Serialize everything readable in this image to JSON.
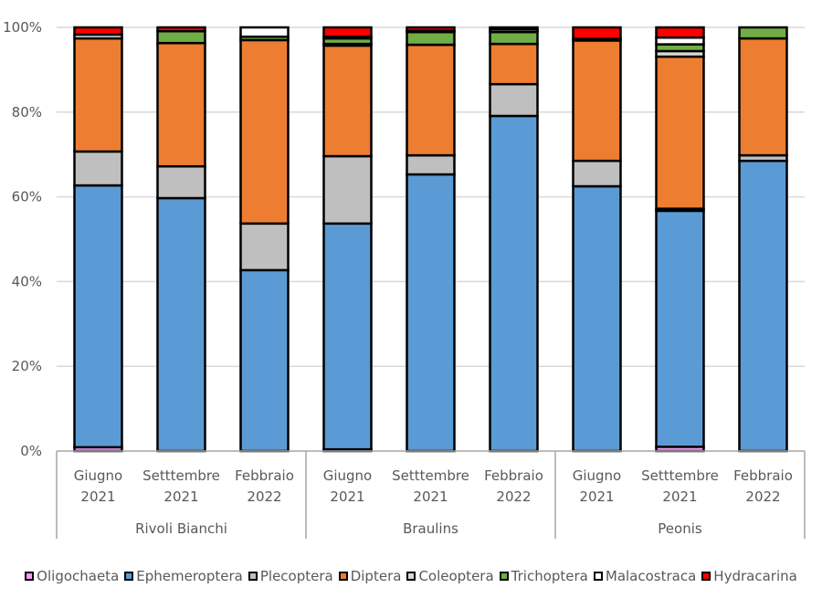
{
  "chart_data": {
    "type": "bar",
    "stacked": true,
    "normalized": true,
    "title": "",
    "xlabel": "",
    "ylabel": "",
    "ylim": [
      0,
      100
    ],
    "yticks": [
      "0%",
      "20%",
      "40%",
      "60%",
      "80%",
      "100%"
    ],
    "grid": true,
    "legend_position": "bottom",
    "groups": [
      {
        "name": "Rivoli Bianchi",
        "categories": [
          {
            "line1": "Giugno",
            "line2": "2021"
          },
          {
            "line1": "Setttembre",
            "line2": "2021"
          },
          {
            "line1": "Febbraio",
            "line2": "2022"
          }
        ]
      },
      {
        "name": "Braulins",
        "categories": [
          {
            "line1": "Giugno",
            "line2": "2021"
          },
          {
            "line1": "Setttembre",
            "line2": "2021"
          },
          {
            "line1": "Febbraio",
            "line2": "2022"
          }
        ]
      },
      {
        "name": "Peonis",
        "categories": [
          {
            "line1": "Giugno",
            "line2": "2021"
          },
          {
            "line1": "Setttembre",
            "line2": "2021"
          },
          {
            "line1": "Febbraio",
            "line2": "2022"
          }
        ]
      }
    ],
    "series": [
      {
        "name": "Oligochaeta",
        "color": "#FF99FF",
        "values": [
          0.9,
          0.0,
          0.0,
          0.4,
          0.0,
          0.0,
          0.0,
          1.0,
          0.0
        ]
      },
      {
        "name": "Ephemeroptera",
        "color": "#5B9BD5",
        "values": [
          61.8,
          59.7,
          42.7,
          53.3,
          65.3,
          79.1,
          62.5,
          55.7,
          68.5
        ]
      },
      {
        "name": "Plecoptera",
        "color": "#BFBFBF",
        "values": [
          8.0,
          7.5,
          11.0,
          15.9,
          4.5,
          7.5,
          6.0,
          0.5,
          1.3
        ]
      },
      {
        "name": "Diptera",
        "color": "#ED7D31",
        "values": [
          26.7,
          29.1,
          43.3,
          26.1,
          26.1,
          9.5,
          28.4,
          35.9,
          27.6
        ]
      },
      {
        "name": "Coleoptera",
        "color": "#D9D9D9",
        "values": [
          0.9,
          0.0,
          0.0,
          0.4,
          0.0,
          0.0,
          0.0,
          1.3,
          0.0
        ]
      },
      {
        "name": "Trichoptera",
        "color": "#70AD47",
        "values": [
          0.0,
          2.8,
          0.8,
          1.3,
          3.0,
          2.8,
          0.0,
          1.6,
          2.6
        ]
      },
      {
        "name": "Malacostraca",
        "color": "#FFFFFF",
        "values": [
          0.0,
          0.0,
          2.2,
          0.4,
          0.3,
          0.6,
          0.4,
          1.6,
          0.0
        ]
      },
      {
        "name": "Hydracarina",
        "color": "#FF0000",
        "values": [
          1.7,
          0.9,
          0.0,
          2.2,
          0.8,
          0.5,
          2.7,
          2.4,
          0.0
        ]
      }
    ]
  }
}
